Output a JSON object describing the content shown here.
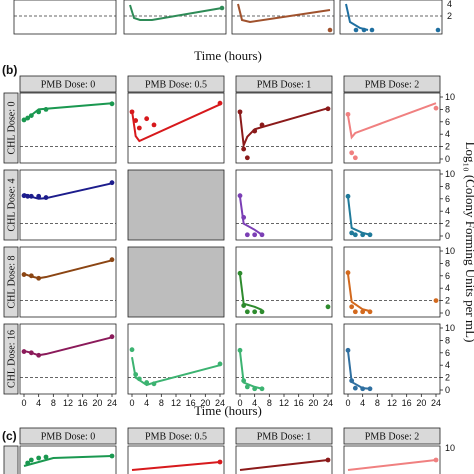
{
  "figure": {
    "panel_b_label": "(b)",
    "panel_c_label": "(c)",
    "x_axis_title": "Time (hours)",
    "y_axis_title": "Log₁₀ (Colony Forming Units per mL)",
    "column_headers": [
      "PMB Dose: 0",
      "PMB Dose: 0.5",
      "PMB Dose: 1",
      "PMB Dose: 2"
    ],
    "row_headers": [
      "CHL Dose: 0",
      "CHL Dose: 4",
      "CHL Dose: 8",
      "CHL Dose: 16"
    ],
    "x_ticks": [
      "0",
      "4",
      "8",
      "12",
      "16",
      "20",
      "24"
    ],
    "y_ticks": [
      "0",
      "2",
      "4",
      "6",
      "8",
      "10"
    ],
    "top_strip_right_ticks": [
      "2",
      "4"
    ],
    "bottom_strip_right_ticks": [
      "10"
    ]
  },
  "chart_data": {
    "type": "scatter",
    "xlabel": "Time (hours)",
    "ylabel": "Log₁₀ (Colony Forming Units per mL)",
    "xlim": [
      0,
      24
    ],
    "ylim": [
      0,
      10
    ],
    "dashed_reference_y": 2,
    "panel_colors": [
      [
        "#1a9850",
        "#d7191c",
        "#8b1a1a",
        "#f08080"
      ],
      [
        "#1c1c8c",
        "#bdbdbd",
        "#7b3fb5",
        "#1f7a9a"
      ],
      [
        "#8b4513",
        "#bdbdbd",
        "#2e8b2e",
        "#d2691e"
      ],
      [
        "#8b1a5a",
        "#3cb371",
        "#3cb371",
        "#2f6fa0"
      ]
    ],
    "panels": [
      [
        {
          "empty": false,
          "points": [
            [
              0,
              6.3
            ],
            [
              1,
              6.6
            ],
            [
              2,
              7.0
            ],
            [
              4,
              7.6
            ],
            [
              6,
              8.0
            ],
            [
              24,
              8.9
            ]
          ],
          "line": [
            [
              0,
              6.2
            ],
            [
              1,
              6.6
            ],
            [
              4,
              8.0
            ],
            [
              24,
              9.0
            ]
          ]
        },
        {
          "empty": false,
          "points": [
            [
              0,
              7.6
            ],
            [
              1,
              6.2
            ],
            [
              2,
              5.0
            ],
            [
              4,
              6.5
            ],
            [
              6,
              5.5
            ],
            [
              24,
              9.0
            ]
          ],
          "line": [
            [
              0,
              7.8
            ],
            [
              1,
              3.7
            ],
            [
              2,
              2.9
            ],
            [
              24,
              8.8
            ]
          ]
        },
        {
          "empty": false,
          "points": [
            [
              0,
              7.6
            ],
            [
              1,
              1.6
            ],
            [
              2,
              0.2
            ],
            [
              4,
              4.5
            ],
            [
              6,
              5.5
            ],
            [
              24,
              8.1
            ]
          ],
          "line": [
            [
              0,
              7.4
            ],
            [
              1,
              2.2
            ],
            [
              2,
              3.6
            ],
            [
              4,
              4.8
            ],
            [
              24,
              8.2
            ]
          ]
        },
        {
          "empty": false,
          "points": [
            [
              0,
              7.2
            ],
            [
              1,
              1.0
            ],
            [
              2,
              0.2
            ],
            [
              24,
              8.2
            ]
          ],
          "line": [
            [
              0,
              7.0
            ],
            [
              1,
              3.5
            ],
            [
              2,
              4.2
            ],
            [
              24,
              9.0
            ]
          ]
        }
      ],
      [
        {
          "empty": false,
          "points": [
            [
              0,
              6.5
            ],
            [
              1,
              6.4
            ],
            [
              2,
              6.4
            ],
            [
              4,
              6.4
            ],
            [
              6,
              6.2
            ],
            [
              24,
              8.6
            ]
          ],
          "line": [
            [
              0,
              6.8
            ],
            [
              1,
              6.5
            ],
            [
              4,
              6.0
            ],
            [
              6,
              6.1
            ],
            [
              24,
              8.5
            ]
          ]
        },
        {
          "empty": true,
          "points": [],
          "line": []
        },
        {
          "empty": false,
          "points": [
            [
              0,
              6.5
            ],
            [
              1,
              3.0
            ],
            [
              2,
              0.2
            ],
            [
              4,
              0.2
            ],
            [
              6,
              0.2
            ]
          ],
          "line": [
            [
              0,
              6.3
            ],
            [
              1,
              2.0
            ],
            [
              4,
              1.0
            ],
            [
              6,
              0.2
            ]
          ]
        },
        {
          "empty": false,
          "points": [
            [
              0,
              6.4
            ],
            [
              1,
              0.5
            ],
            [
              2,
              0.2
            ],
            [
              4,
              0.2
            ],
            [
              6,
              0.2
            ]
          ],
          "line": [
            [
              0,
              6.3
            ],
            [
              1,
              1.3
            ],
            [
              4,
              0.5
            ],
            [
              6,
              0.2
            ]
          ]
        }
      ],
      [
        {
          "empty": false,
          "points": [
            [
              0,
              6.2
            ],
            [
              2,
              6.0
            ],
            [
              4,
              5.6
            ],
            [
              24,
              8.6
            ]
          ],
          "line": [
            [
              0,
              6.3
            ],
            [
              2,
              5.9
            ],
            [
              4,
              5.6
            ],
            [
              6,
              5.8
            ],
            [
              24,
              8.5
            ]
          ]
        },
        {
          "empty": true,
          "points": [],
          "line": []
        },
        {
          "empty": false,
          "points": [
            [
              0,
              6.4
            ],
            [
              1,
              1.2
            ],
            [
              2,
              0.2
            ],
            [
              4,
              0.2
            ],
            [
              6,
              0.2
            ],
            [
              24,
              1.0
            ]
          ],
          "line": [
            [
              0,
              6.2
            ],
            [
              1,
              1.5
            ],
            [
              4,
              1.0
            ],
            [
              6,
              0.5
            ]
          ]
        },
        {
          "empty": false,
          "points": [
            [
              0,
              6.5
            ],
            [
              1,
              1.0
            ],
            [
              2,
              0.2
            ],
            [
              4,
              0.2
            ],
            [
              6,
              0.2
            ],
            [
              24,
              2.0
            ]
          ],
          "line": [
            [
              0,
              6.3
            ],
            [
              1,
              1.8
            ],
            [
              4,
              0.6
            ],
            [
              6,
              0.3
            ]
          ]
        }
      ],
      [
        {
          "empty": false,
          "points": [
            [
              0,
              6.2
            ],
            [
              2,
              6.0
            ],
            [
              4,
              5.6
            ],
            [
              24,
              8.6
            ]
          ],
          "line": [
            [
              0,
              6.3
            ],
            [
              2,
              6.0
            ],
            [
              4,
              5.6
            ],
            [
              6,
              5.8
            ],
            [
              24,
              8.5
            ]
          ]
        },
        {
          "empty": false,
          "points": [
            [
              0,
              6.5
            ],
            [
              1,
              2.5
            ],
            [
              2,
              1.8
            ],
            [
              4,
              1.2
            ],
            [
              6,
              1.0
            ],
            [
              24,
              4.2
            ]
          ],
          "line": [
            [
              0,
              5.3
            ],
            [
              1,
              2.0
            ],
            [
              4,
              0.8
            ],
            [
              6,
              1.2
            ],
            [
              24,
              4.0
            ]
          ]
        },
        {
          "empty": false,
          "points": [
            [
              0,
              6.4
            ],
            [
              1,
              1.5
            ],
            [
              2,
              0.5
            ],
            [
              4,
              0.2
            ],
            [
              6,
              0.2
            ]
          ],
          "line": [
            [
              0,
              6.2
            ],
            [
              1,
              1.2
            ],
            [
              4,
              0.5
            ],
            [
              6,
              0.2
            ]
          ]
        },
        {
          "empty": false,
          "points": [
            [
              0,
              6.4
            ],
            [
              1,
              1.5
            ],
            [
              2,
              0.3
            ],
            [
              4,
              0.2
            ],
            [
              6,
              0.2
            ]
          ],
          "line": [
            [
              0,
              6.3
            ],
            [
              1,
              1.3
            ],
            [
              4,
              0.3
            ],
            [
              6,
              0.2
            ]
          ]
        }
      ]
    ]
  }
}
